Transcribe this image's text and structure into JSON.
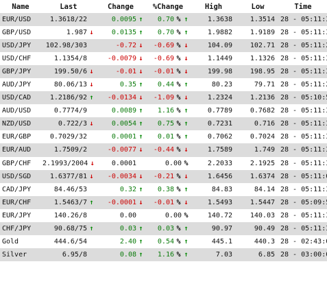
{
  "headers": {
    "name": "Name",
    "last": "Last",
    "change": "Change",
    "pct": "%Change",
    "high": "High",
    "low": "Low",
    "time": "Time"
  },
  "colors": {
    "up": "#0a7a0a",
    "down": "#cc0000",
    "alt_row": "#dcdcdc"
  },
  "rows": [
    {
      "name": "EUR/USD",
      "last": "1.3618/22",
      "last_arrow": "",
      "change": "0.0095",
      "pct": "0.70",
      "pct_sign": "%",
      "dir": "up",
      "high": "1.3638",
      "low": "1.3514",
      "time": "28 - 05:11:33"
    },
    {
      "name": "GBP/USD",
      "last": "1.987",
      "last_arrow": "down",
      "change": "0.0135",
      "pct": "0.70",
      "pct_sign": "%",
      "dir": "up",
      "high": "1.9882",
      "low": "1.9189",
      "time": "28 - 05:11:33"
    },
    {
      "name": "USD/JPY",
      "last": "102.98/303",
      "last_arrow": "",
      "change": "-0.72",
      "pct": "-0.69",
      "pct_sign": "%",
      "dir": "down",
      "high": "104.09",
      "low": "102.71",
      "time": "28 - 05:11:21"
    },
    {
      "name": "USD/CHF",
      "last": "1.1354/8",
      "last_arrow": "",
      "change": "-0.0079",
      "pct": "-0.69",
      "pct_sign": "%",
      "dir": "down",
      "high": "1.1449",
      "low": "1.1326",
      "time": "28 - 05:11:33"
    },
    {
      "name": "GBP/JPY",
      "last": "199.50/6",
      "last_arrow": "down",
      "change": "-0.01",
      "pct": "-0.01",
      "pct_sign": "%",
      "dir": "down",
      "high": "199.98",
      "low": "198.95",
      "time": "28 - 05:11:33"
    },
    {
      "name": "AUD/JPY",
      "last": "80.06/13",
      "last_arrow": "down",
      "change": "0.35",
      "pct": "0.44",
      "pct_sign": "%",
      "dir": "up",
      "high": "80.23",
      "low": "79.71",
      "time": "28 - 05:11:29"
    },
    {
      "name": "USD/CAD",
      "last": "1.2186/92",
      "last_arrow": "up",
      "change": "-0.0134",
      "pct": "-1.09",
      "pct_sign": "%",
      "dir": "down",
      "high": "1.2324",
      "low": "1.2136",
      "time": "28 - 05:10:51"
    },
    {
      "name": "AUD/USD",
      "last": "0.7774/9",
      "last_arrow": "",
      "change": "0.0089",
      "pct": "1.16",
      "pct_sign": "%",
      "dir": "up",
      "high": "0.7789",
      "low": "0.7682",
      "time": "28 - 05:11:37"
    },
    {
      "name": "NZD/USD",
      "last": "0.722/3",
      "last_arrow": "down",
      "change": "0.0054",
      "pct": "0.75",
      "pct_sign": "%",
      "dir": "up",
      "high": "0.7231",
      "low": "0.716",
      "time": "28 - 05:11:33"
    },
    {
      "name": "EUR/GBP",
      "last": "0.7029/32",
      "last_arrow": "",
      "change": "0.0001",
      "pct": "0.01",
      "pct_sign": "%",
      "dir": "up",
      "high": "0.7062",
      "low": "0.7024",
      "time": "28 - 05:11:31"
    },
    {
      "name": "EUR/AUD",
      "last": "1.7509/2",
      "last_arrow": "",
      "change": "-0.0077",
      "pct": "-0.44",
      "pct_sign": "%",
      "dir": "down",
      "high": "1.7589",
      "low": "1.749",
      "time": "28 - 05:11:33"
    },
    {
      "name": "GBP/CHF",
      "last": "2.1993/2004",
      "last_arrow": "down",
      "change": "0.0001",
      "pct": "0.00",
      "pct_sign": "%",
      "dir": "flat",
      "high": "2.2033",
      "low": "2.1925",
      "time": "28 - 05:11:33"
    },
    {
      "name": "USD/SGD",
      "last": "1.6377/81",
      "last_arrow": "down",
      "change": "-0.0034",
      "pct": "-0.21",
      "pct_sign": "%",
      "dir": "down",
      "high": "1.6456",
      "low": "1.6374",
      "time": "28 - 05:11:09"
    },
    {
      "name": "CAD/JPY",
      "last": "84.46/53",
      "last_arrow": "",
      "change": "0.32",
      "pct": "0.38",
      "pct_sign": "%",
      "dir": "up",
      "high": "84.83",
      "low": "84.14",
      "time": "28 - 05:11:33"
    },
    {
      "name": "EUR/CHF",
      "last": "1.5463/7",
      "last_arrow": "up",
      "change": "-0.0001",
      "pct": "-0.01",
      "pct_sign": "%",
      "dir": "down",
      "high": "1.5493",
      "low": "1.5447",
      "time": "28 - 05:09:51"
    },
    {
      "name": "EUR/JPY",
      "last": "140.26/8",
      "last_arrow": "",
      "change": "0.00",
      "pct": "0.00",
      "pct_sign": "%",
      "dir": "flat",
      "high": "140.72",
      "low": "140.03",
      "time": "28 - 05:11:31"
    },
    {
      "name": "CHF/JPY",
      "last": "90.68/75",
      "last_arrow": "up",
      "change": "0.03",
      "pct": "0.03",
      "pct_sign": "%",
      "dir": "up",
      "high": "90.97",
      "low": "90.49",
      "time": "28 - 05:11:33"
    },
    {
      "name": "Gold",
      "last": "444.6/54",
      "last_arrow": "",
      "change": "2.40",
      "pct": "0.54",
      "pct_sign": "%",
      "dir": "up",
      "high": "445.1",
      "low": "440.3",
      "time": "28 - 02:43:00"
    },
    {
      "name": "Silver",
      "last": "6.95/8",
      "last_arrow": "",
      "change": "0.08",
      "pct": "1.16",
      "pct_sign": "%",
      "dir": "up",
      "high": "7.03",
      "low": "6.85",
      "time": "28 - 03:00:00"
    }
  ]
}
